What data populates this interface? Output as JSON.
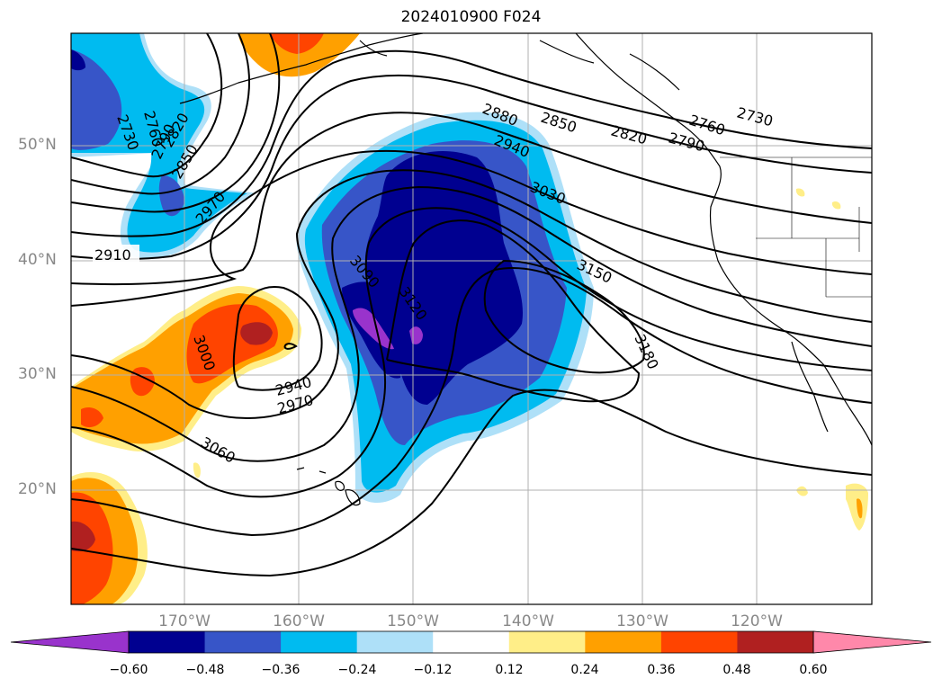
{
  "title": "2024010900 F024",
  "map": {
    "projection": "Mercator",
    "lon_range": [
      -180,
      -110
    ],
    "lat_range": [
      10,
      60
    ],
    "lat_labels": [
      {
        "lat": 50,
        "text": "50°N"
      },
      {
        "lat": 40,
        "text": "40°N"
      },
      {
        "lat": 30,
        "text": "30°N"
      },
      {
        "lat": 20,
        "text": "20°N"
      }
    ],
    "lon_labels": [
      {
        "lon": -170,
        "text": "170°W"
      },
      {
        "lon": -160,
        "text": "160°W"
      },
      {
        "lon": -150,
        "text": "150°W"
      },
      {
        "lon": -140,
        "text": "140°W"
      },
      {
        "lon": -130,
        "text": "130°W"
      },
      {
        "lon": -120,
        "text": "120°W"
      }
    ],
    "contour_labels": [
      "2730",
      "2760",
      "2790",
      "2820",
      "2850",
      "2880",
      "2910",
      "2940",
      "2970",
      "3000",
      "3030",
      "3060",
      "3090",
      "3120",
      "3150",
      "3180"
    ],
    "grid": true
  },
  "colorbar": {
    "ticks": [
      "−0.60",
      "−0.48",
      "−0.36",
      "−0.24",
      "−0.12",
      "0.12",
      "0.24",
      "0.36",
      "0.48",
      "0.60"
    ],
    "colors": [
      "#9933cc",
      "#000090",
      "#3755c8",
      "#00bbf0",
      "#aee0f8",
      "#ffffff",
      "#ffee88",
      "#ffa000",
      "#ff4400",
      "#b02020",
      "#ff88aa"
    ]
  }
}
